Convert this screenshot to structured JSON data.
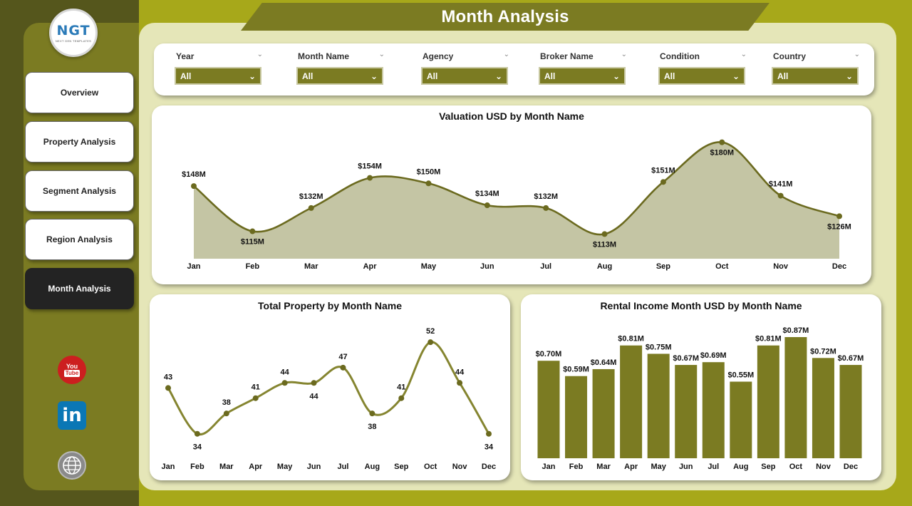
{
  "title": "Month Analysis",
  "logo": {
    "main": "NGT",
    "sub": "NEXT GEN TEMPLATES"
  },
  "nav": [
    {
      "label": "Overview",
      "active": false
    },
    {
      "label": "Property Analysis",
      "active": false
    },
    {
      "label": "Segment Analysis",
      "active": false
    },
    {
      "label": "Region Analysis",
      "active": false
    },
    {
      "label": "Month Analysis",
      "active": true
    }
  ],
  "social": {
    "youtube_top": "You",
    "youtube_bottom": "Tube",
    "linkedin": "in"
  },
  "filters": [
    {
      "label": "Year",
      "value": "All"
    },
    {
      "label": "Month Name",
      "value": "All"
    },
    {
      "label": "Agency",
      "value": "All"
    },
    {
      "label": "Broker Name",
      "value": "All"
    },
    {
      "label": "Condition",
      "value": "All"
    },
    {
      "label": "Country",
      "value": "All"
    }
  ],
  "colors": {
    "olive_dark": "#6b6a1f",
    "olive_area": "#c4c5a4",
    "olive_line": "#858530",
    "olive_bar": "#7b7b22"
  },
  "chart_data": [
    {
      "type": "area",
      "title": "Valuation USD by Month Name",
      "categories": [
        "Jan",
        "Feb",
        "Mar",
        "Apr",
        "May",
        "Jun",
        "Jul",
        "Aug",
        "Sep",
        "Oct",
        "Nov",
        "Dec"
      ],
      "values": [
        148,
        115,
        132,
        154,
        150,
        134,
        132,
        113,
        151,
        180,
        141,
        126
      ],
      "labels": [
        "$148M",
        "$115M",
        "$132M",
        "$154M",
        "$150M",
        "$134M",
        "$132M",
        "$113M",
        "$151M",
        "$180M",
        "$141M",
        "$126M"
      ],
      "unit": "USD millions",
      "ylim": [
        95,
        185
      ]
    },
    {
      "type": "line",
      "title": "Total Property by Month Name",
      "categories": [
        "Jan",
        "Feb",
        "Mar",
        "Apr",
        "May",
        "Jun",
        "Jul",
        "Aug",
        "Sep",
        "Oct",
        "Nov",
        "Dec"
      ],
      "values": [
        43,
        34,
        38,
        41,
        44,
        44,
        47,
        38,
        41,
        52,
        44,
        34
      ],
      "labels": [
        "43",
        "34",
        "38",
        "41",
        "44",
        "44",
        "47",
        "38",
        "41",
        "52",
        "44",
        "34"
      ],
      "ylim": [
        32,
        53
      ]
    },
    {
      "type": "bar",
      "title": "Rental Income Month USD by Month Name",
      "categories": [
        "Jan",
        "Feb",
        "Mar",
        "Apr",
        "May",
        "Jun",
        "Jul",
        "Aug",
        "Sep",
        "Oct",
        "Nov",
        "Dec"
      ],
      "values": [
        0.7,
        0.59,
        0.64,
        0.81,
        0.75,
        0.67,
        0.69,
        0.55,
        0.81,
        0.87,
        0.72,
        0.67
      ],
      "labels": [
        "$0.70M",
        "$0.59M",
        "$0.64M",
        "$0.81M",
        "$0.75M",
        "$0.67M",
        "$0.69M",
        "$0.55M",
        "$0.81M",
        "$0.87M",
        "$0.72M",
        "$0.67M"
      ],
      "unit": "USD millions",
      "ylim": [
        0,
        0.9
      ]
    }
  ]
}
